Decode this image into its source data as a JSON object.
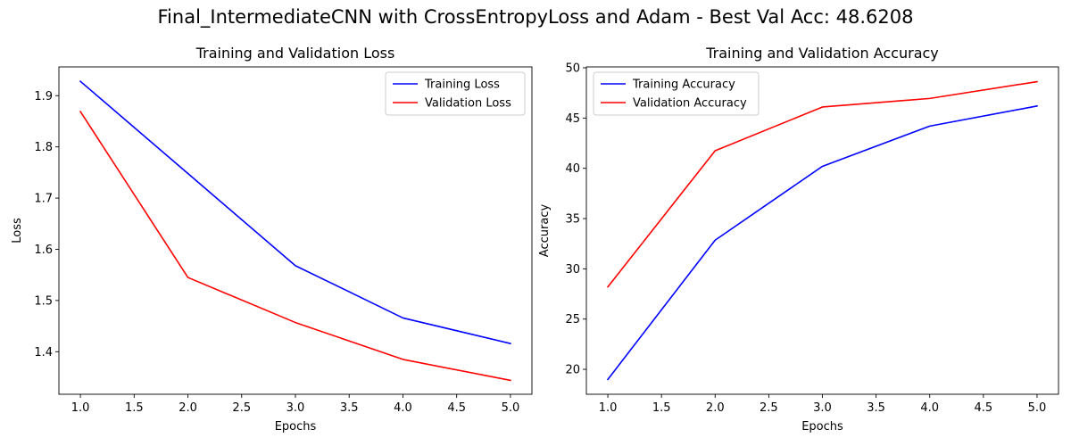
{
  "figure": {
    "suptitle": "Final_IntermediateCNN with CrossEntropyLoss and Adam - Best Val Acc: 48.6208"
  },
  "chart_data": [
    {
      "type": "line",
      "title": "Training and Validation Loss",
      "xlabel": "Epochs",
      "ylabel": "Loss",
      "x": [
        1,
        2,
        3,
        4,
        5
      ],
      "xlim": [
        0.8,
        5.2
      ],
      "ylim": [
        1.3169,
        1.9562
      ],
      "xticks": [
        1.0,
        1.5,
        2.0,
        2.5,
        3.0,
        3.5,
        4.0,
        4.5,
        5.0
      ],
      "xtick_labels": [
        "1.0",
        "1.5",
        "2.0",
        "2.5",
        "3.0",
        "3.5",
        "4.0",
        "4.5",
        "5.0"
      ],
      "yticks": [
        1.4,
        1.5,
        1.6,
        1.7,
        1.8,
        1.9
      ],
      "ytick_labels": [
        "1.4",
        "1.5",
        "1.6",
        "1.7",
        "1.8",
        "1.9"
      ],
      "legend_position": "top-right",
      "grid": false,
      "series": [
        {
          "name": "Training Loss",
          "color": "#0000ff",
          "values": [
            1.928,
            1.748,
            1.568,
            1.466,
            1.416
          ]
        },
        {
          "name": "Validation Loss",
          "color": "#ff0000",
          "values": [
            1.869,
            1.545,
            1.457,
            1.385,
            1.344
          ]
        }
      ]
    },
    {
      "type": "line",
      "title": "Training and Validation Accuracy",
      "xlabel": "Epochs",
      "ylabel": "Accuracy",
      "x": [
        1,
        2,
        3,
        4,
        5
      ],
      "xlim": [
        0.8,
        5.2
      ],
      "ylim": [
        17.52,
        50.09
      ],
      "xticks": [
        1.0,
        1.5,
        2.0,
        2.5,
        3.0,
        3.5,
        4.0,
        4.5,
        5.0
      ],
      "xtick_labels": [
        "1.0",
        "1.5",
        "2.0",
        "2.5",
        "3.0",
        "3.5",
        "4.0",
        "4.5",
        "5.0"
      ],
      "yticks": [
        20,
        25,
        30,
        35,
        40,
        45,
        50
      ],
      "ytick_labels": [
        "20",
        "25",
        "30",
        "35",
        "40",
        "45",
        "50"
      ],
      "legend_position": "top-left",
      "grid": false,
      "series": [
        {
          "name": "Training Accuracy",
          "color": "#0000ff",
          "values": [
            19.0,
            32.85,
            40.2,
            44.2,
            46.2
          ]
        },
        {
          "name": "Validation Accuracy",
          "color": "#ff0000",
          "values": [
            28.2,
            41.75,
            46.1,
            46.95,
            48.62
          ]
        }
      ]
    }
  ]
}
